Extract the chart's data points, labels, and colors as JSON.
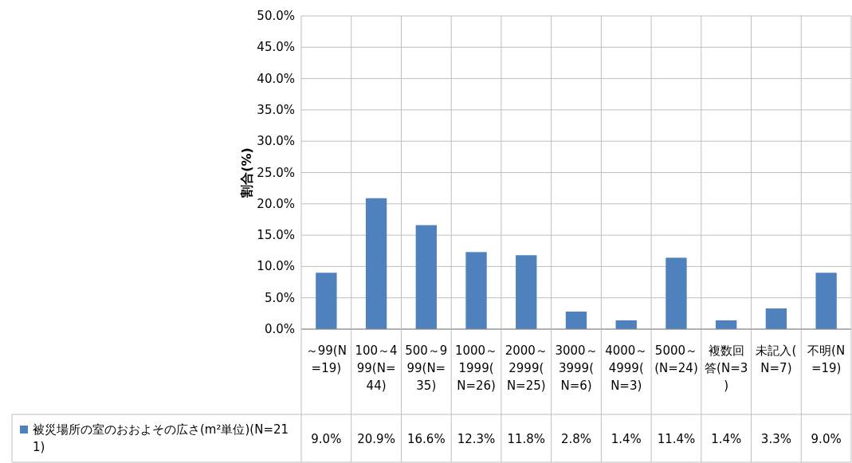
{
  "chart_data": {
    "type": "bar",
    "ylabel": "割合(%)",
    "categories": [
      "～99(N=19)",
      "100～499(N=44)",
      "500～999(N=35)",
      "1000～1999(N=26)",
      "2000～2999(N=25)",
      "3000～3999(N=6)",
      "4000～4999(N=3)",
      "5000～(N=24)",
      "複数回答(N=3)",
      "未記入(N=7)",
      "不明(N=19)"
    ],
    "series": [
      {
        "name": "被災場所の室のおおよその広さ(m²単位)(N=211)",
        "color": "#4f81bd",
        "values": [
          9.0,
          20.9,
          16.6,
          12.3,
          11.8,
          2.8,
          1.4,
          11.4,
          1.4,
          3.3,
          9.0
        ],
        "value_labels": [
          "9.0%",
          "20.9%",
          "16.6%",
          "12.3%",
          "11.8%",
          "2.8%",
          "1.4%",
          "11.4%",
          "1.4%",
          "3.3%",
          "9.0%"
        ]
      }
    ],
    "ylim": [
      0,
      50
    ],
    "yticks": [
      {
        "value": 0,
        "label": "0.0%"
      },
      {
        "value": 5,
        "label": "5.0%"
      },
      {
        "value": 10,
        "label": "10.0%"
      },
      {
        "value": 15,
        "label": "15.0%"
      },
      {
        "value": 20,
        "label": "20.0%"
      },
      {
        "value": 25,
        "label": "25.0%"
      },
      {
        "value": 30,
        "label": "30.0%"
      },
      {
        "value": 35,
        "label": "35.0%"
      },
      {
        "value": 40,
        "label": "40.0%"
      },
      {
        "value": 45,
        "label": "45.0%"
      },
      {
        "value": 50,
        "label": "50.0%"
      }
    ],
    "grid": true
  }
}
